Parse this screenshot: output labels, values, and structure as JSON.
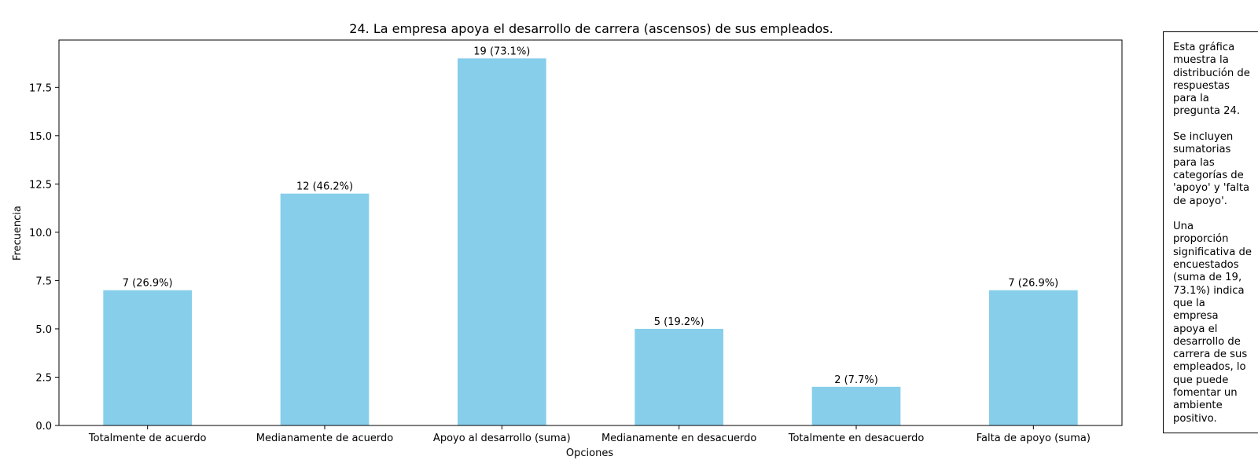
{
  "chart_data": {
    "type": "bar",
    "title": "24. La empresa apoya el desarrollo de carrera (ascensos) de sus empleados.",
    "xlabel": "Opciones",
    "ylabel": "Frecuencia",
    "categories": [
      "Totalmente de acuerdo",
      "Medianamente de acuerdo",
      "Apoyo al desarrollo (suma)",
      "Medianamente en desacuerdo",
      "Totalmente en desacuerdo",
      "Falta de apoyo (suma)"
    ],
    "values": [
      7,
      12,
      19,
      5,
      2,
      7
    ],
    "bar_labels": [
      "7 (26.9%)",
      "12 (46.2%)",
      "19 (73.1%)",
      "5 (19.2%)",
      "2 (7.7%)",
      "7 (26.9%)"
    ],
    "yticks": [
      0,
      2.5,
      5,
      7.5,
      10,
      12.5,
      15,
      17.5
    ],
    "ytick_labels": [
      "0.0",
      "2.5",
      "5.0",
      "7.5",
      "10.0",
      "12.5",
      "15.0",
      "17.5"
    ],
    "ylim": [
      0,
      19.95
    ],
    "grid": false,
    "legend": "none",
    "bar_color": "#87CEEB"
  },
  "annotation": {
    "text": "Esta gráfica\nmuestra la\ndistribución de\nrespuestas\npara la\npregunta 24.\n\nSe incluyen\nsumatorias\npara las\ncategorías de\n'apoyo' y 'falta\nde apoyo'.\n\nUna\nproporción\nsignificativa de\nencuestados\n(suma de 19,\n73.1%) indica\nque la\nempresa\napoya el\ndesarrollo de\ncarrera de sus\nempleados, lo\nque puede\nfomentar un\nambiente\npositivo."
  }
}
